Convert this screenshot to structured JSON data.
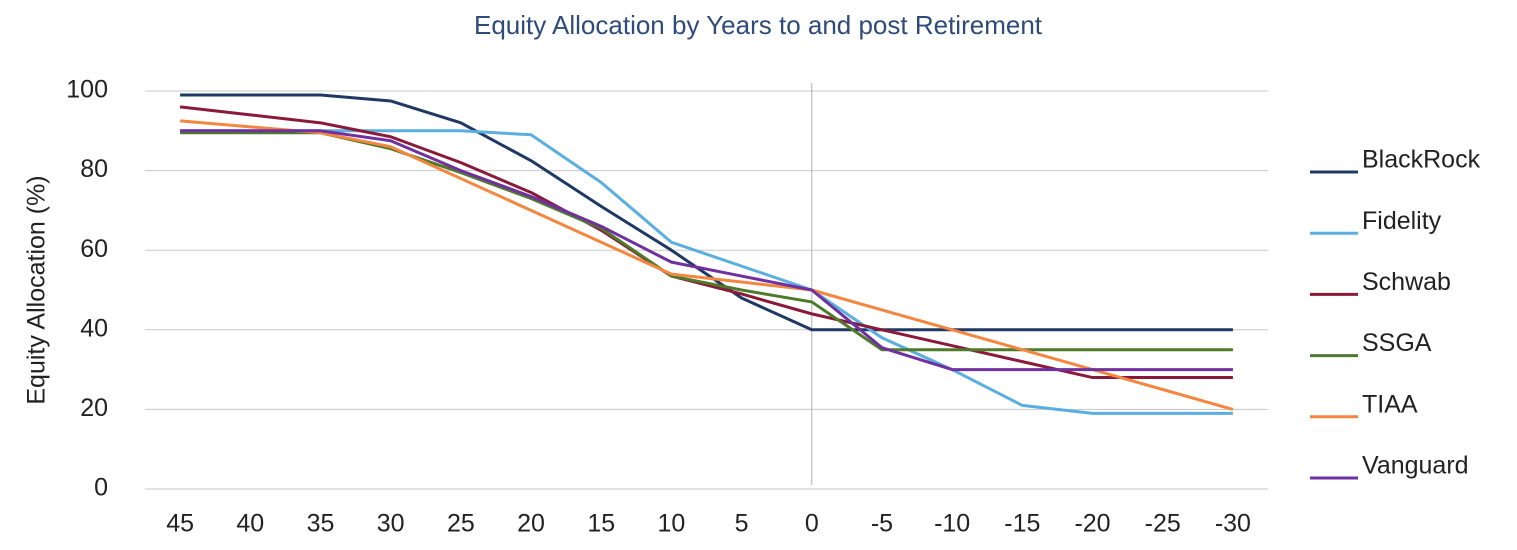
{
  "chart_data": {
    "type": "line",
    "title": "Equity Allocation by Years to and post Retirement",
    "y_label": "Equity Allocation (%)",
    "categories": [
      45,
      40,
      35,
      30,
      25,
      20,
      15,
      10,
      5,
      0,
      -5,
      -10,
      -15,
      -20,
      -25,
      -30
    ],
    "series": [
      {
        "name": "BlackRock",
        "color": "#1f3864",
        "values": [
          99,
          99,
          99,
          97.5,
          92,
          82.5,
          71,
          60,
          48,
          40,
          40,
          40,
          40,
          40,
          40,
          40
        ]
      },
      {
        "name": "Fidelity",
        "color": "#5baee0",
        "values": [
          90,
          90,
          90,
          90,
          90,
          89,
          77,
          62,
          56,
          50,
          38,
          30,
          21,
          19,
          19,
          19
        ]
      },
      {
        "name": "Schwab",
        "color": "#8b1a3a",
        "values": [
          96,
          94,
          92,
          88.5,
          82,
          74.5,
          65,
          53.5,
          49,
          44,
          40,
          36,
          32,
          28,
          28,
          28
        ]
      },
      {
        "name": "SSGA",
        "color": "#4e7a2a",
        "values": [
          89.5,
          89.5,
          89.5,
          85.5,
          79.5,
          73,
          65.5,
          53.5,
          50,
          47,
          35,
          35,
          35,
          35,
          35,
          35
        ]
      },
      {
        "name": "TIAA",
        "color": "#f4873f",
        "values": [
          92.5,
          91,
          89.5,
          86,
          78,
          70,
          62,
          54,
          52,
          50,
          45,
          40,
          35,
          30,
          25,
          20
        ]
      },
      {
        "name": "Vanguard",
        "color": "#7030a0",
        "values": [
          90,
          90,
          90,
          87.5,
          80,
          73.5,
          66,
          57,
          53.5,
          50,
          35.5,
          30,
          30,
          30,
          30,
          30
        ]
      }
    ],
    "ylim": [
      0,
      100
    ],
    "yticks": [
      0,
      20,
      40,
      60,
      80,
      100
    ],
    "grid": true,
    "vline": 0,
    "legend": "right"
  }
}
